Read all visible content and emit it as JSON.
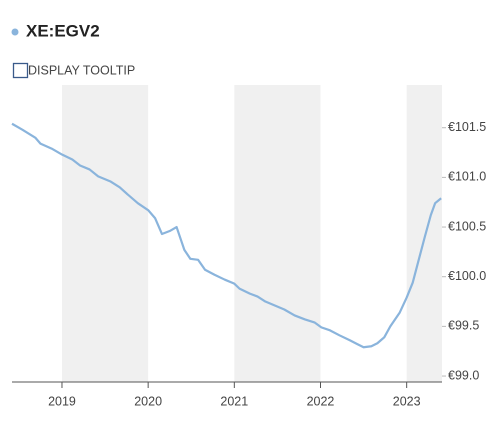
{
  "toolbar": {
    "checkbox_label": "DISPLAY TOOLTIP"
  },
  "chart_data": {
    "type": "line",
    "x": [
      2018.42,
      2018.54,
      2018.69,
      2018.75,
      2018.88,
      2019.0,
      2019.12,
      2019.21,
      2019.32,
      2019.42,
      2019.56,
      2019.67,
      2019.76,
      2019.88,
      2020.0,
      2020.08,
      2020.16,
      2020.25,
      2020.33,
      2020.42,
      2020.49,
      2020.58,
      2020.66,
      2020.77,
      2020.89,
      2021.0,
      2021.06,
      2021.18,
      2021.27,
      2021.36,
      2021.47,
      2021.58,
      2021.7,
      2021.82,
      2021.93,
      2022.01,
      2022.11,
      2022.22,
      2022.34,
      2022.43,
      2022.5,
      2022.59,
      2022.66,
      2022.74,
      2022.81,
      2022.92,
      2023.0,
      2023.07,
      2023.14,
      2023.21,
      2023.28,
      2023.33,
      2023.4
    ],
    "series": [
      {
        "name": "XE:EGV2",
        "color": "#8ab4dc",
        "values": [
          101.54,
          101.48,
          101.4,
          101.34,
          101.29,
          101.23,
          101.18,
          101.12,
          101.08,
          101.01,
          100.96,
          100.9,
          100.83,
          100.74,
          100.67,
          100.59,
          100.43,
          100.46,
          100.5,
          100.27,
          100.18,
          100.17,
          100.07,
          100.02,
          99.97,
          99.93,
          99.88,
          99.83,
          99.8,
          99.75,
          99.71,
          99.67,
          99.61,
          99.57,
          99.54,
          99.49,
          99.46,
          99.41,
          99.36,
          99.32,
          99.29,
          99.3,
          99.33,
          99.39,
          99.5,
          99.64,
          99.79,
          99.94,
          100.17,
          100.4,
          100.62,
          100.74,
          100.79
        ]
      }
    ],
    "xlim": [
      2018.42,
      2023.41
    ],
    "xticks": [
      2019,
      2020,
      2021,
      2022,
      2023
    ],
    "ylim": [
      98.94,
      101.93
    ],
    "yticks": [
      {
        "value": 99.0,
        "label": "€99.0"
      },
      {
        "value": 99.5,
        "label": "€99.5"
      },
      {
        "value": 100.0,
        "label": "€100.0"
      },
      {
        "value": 100.5,
        "label": "€100.5"
      },
      {
        "value": 101.0,
        "label": "€101.0"
      },
      {
        "value": 101.5,
        "label": "€101.5"
      }
    ],
    "grid": false,
    "band_color": "#f0f0f0"
  }
}
